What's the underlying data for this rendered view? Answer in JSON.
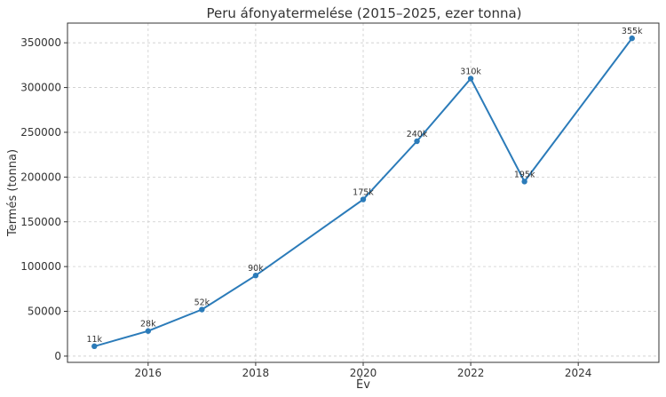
{
  "chart_data": {
    "type": "line",
    "title": "Peru áfonyatermelése (2015–2025, ezer tonna)",
    "xlabel": "Év",
    "ylabel": "Termés (tonna)",
    "x": [
      2015,
      2016,
      2017,
      2018,
      2019,
      2020,
      2021,
      2022,
      2023,
      2024,
      2025
    ],
    "series": [
      {
        "values": [
          11000,
          28000,
          52000,
          90000,
          null,
          175000,
          240000,
          310000,
          195000,
          null,
          355000
        ],
        "labels": [
          "11k",
          "28k",
          "52k",
          "90k",
          null,
          "175k",
          "240k",
          "310k",
          "195k",
          null,
          "355k"
        ],
        "color": "#2b7bb9"
      }
    ],
    "xticks": [
      2016,
      2018,
      2020,
      2022,
      2024
    ],
    "yticks": [
      0,
      50000,
      100000,
      150000,
      200000,
      250000,
      300000,
      350000
    ],
    "xlim": [
      2014.5,
      2025.5
    ],
    "ylim": [
      -7000,
      372000
    ],
    "grid": true
  }
}
